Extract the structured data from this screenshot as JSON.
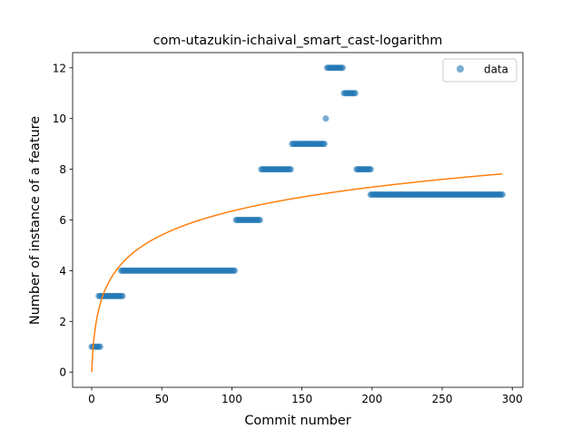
{
  "chart_data": {
    "type": "scatter",
    "title": "com-utazukin-ichaival_smart_cast-logarithm",
    "xlabel": "Commit number",
    "ylabel": "Number of instance of a feature",
    "xlim": [
      -13.6,
      307.6
    ],
    "ylim": [
      -0.6,
      12.6
    ],
    "xticks": [
      0,
      50,
      100,
      150,
      200,
      250,
      300
    ],
    "yticks": [
      0,
      2,
      4,
      6,
      8,
      10,
      12
    ],
    "grid": false,
    "legend": {
      "placement": "top-right",
      "entries": [
        "data"
      ]
    },
    "colors": {
      "data": "#1f77b4",
      "fit": "#ff7f0e"
    },
    "series": [
      {
        "name": "data",
        "kind": "scatter",
        "segments": [
          {
            "x_start": 0,
            "x_end": 6,
            "y": 1
          },
          {
            "x_start": 5,
            "x_end": 22,
            "y": 3
          },
          {
            "x_start": 21,
            "x_end": 102,
            "y": 4
          },
          {
            "x_start": 103,
            "x_end": 120,
            "y": 6
          },
          {
            "x_start": 121,
            "x_end": 142,
            "y": 8
          },
          {
            "x_start": 143,
            "x_end": 166,
            "y": 9
          },
          {
            "x_start": 167,
            "x_end": 167,
            "y": 10
          },
          {
            "x_start": 168,
            "x_end": 179,
            "y": 12
          },
          {
            "x_start": 180,
            "x_end": 188,
            "y": 11
          },
          {
            "x_start": 189,
            "x_end": 199,
            "y": 8
          },
          {
            "x_start": 199,
            "x_end": 293,
            "y": 7
          }
        ]
      },
      {
        "kind": "line",
        "model": "a*ln(x+1)",
        "a": 1.3755,
        "x_range": [
          0,
          293
        ]
      }
    ]
  }
}
